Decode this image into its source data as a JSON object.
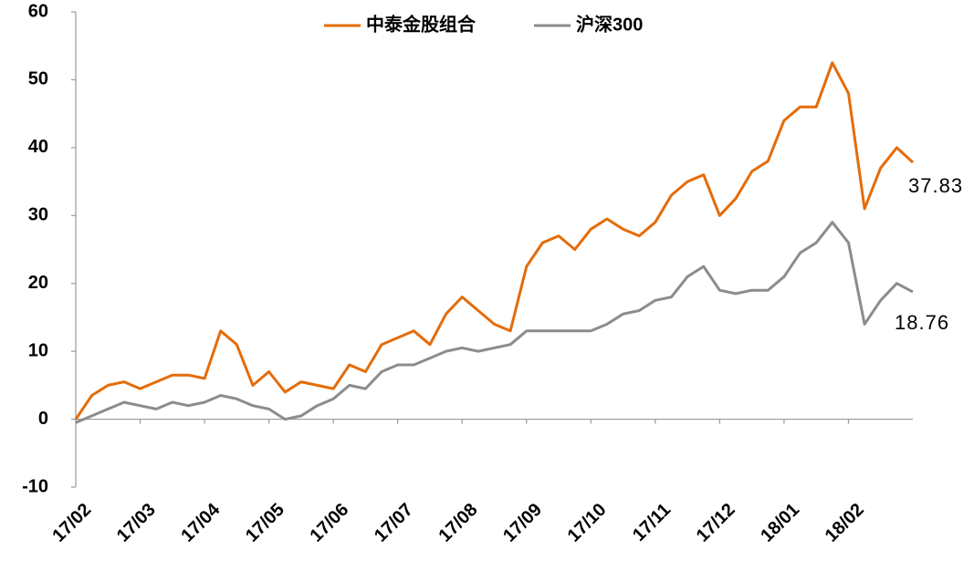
{
  "chart_data": {
    "type": "line",
    "categories": [
      "17/02",
      null,
      null,
      null,
      "17/03",
      null,
      null,
      null,
      "17/04",
      null,
      null,
      null,
      "17/05",
      null,
      null,
      null,
      "17/06",
      null,
      null,
      null,
      "17/07",
      null,
      null,
      null,
      "17/08",
      null,
      null,
      null,
      "17/09",
      null,
      null,
      null,
      "17/10",
      null,
      null,
      null,
      "17/11",
      null,
      null,
      null,
      "17/12",
      null,
      null,
      null,
      "18/01",
      null,
      null,
      null,
      "18/02",
      null,
      null,
      null,
      null
    ],
    "series": [
      {
        "name": "中泰金股组合",
        "color": "#e46c0a",
        "values": [
          0,
          3.5,
          5,
          5.5,
          4.5,
          5.5,
          6.5,
          6.5,
          6,
          13,
          11,
          5,
          7,
          4,
          5.5,
          5,
          4.5,
          8,
          7,
          11,
          12,
          13,
          11,
          15.5,
          18,
          16,
          14,
          13,
          22.5,
          26,
          27,
          25,
          28,
          29.5,
          28,
          27,
          29,
          33,
          35,
          36,
          30,
          32.5,
          36.5,
          38,
          44,
          46,
          46,
          52.5,
          48,
          31,
          37,
          40,
          37.83
        ]
      },
      {
        "name": "沪深300",
        "color": "#8c8c8c",
        "values": [
          -0.5,
          0.5,
          1.5,
          2.5,
          2,
          1.5,
          2.5,
          2,
          2.5,
          3.5,
          3,
          2,
          1.5,
          0,
          0.5,
          2,
          3,
          5,
          4.5,
          7,
          8,
          8,
          9,
          10,
          10.5,
          10,
          10.5,
          11,
          13,
          13,
          13,
          13,
          13,
          14,
          15.5,
          16,
          17.5,
          18,
          21,
          22.5,
          19,
          18.5,
          19,
          19,
          21,
          24.5,
          26,
          29,
          26,
          14,
          17.5,
          20,
          18.76
        ]
      }
    ],
    "ylim": [
      -10,
      60
    ],
    "yticks": [
      -10,
      0,
      10,
      20,
      30,
      40,
      50,
      60
    ],
    "grid": false,
    "legend": "top"
  }
}
